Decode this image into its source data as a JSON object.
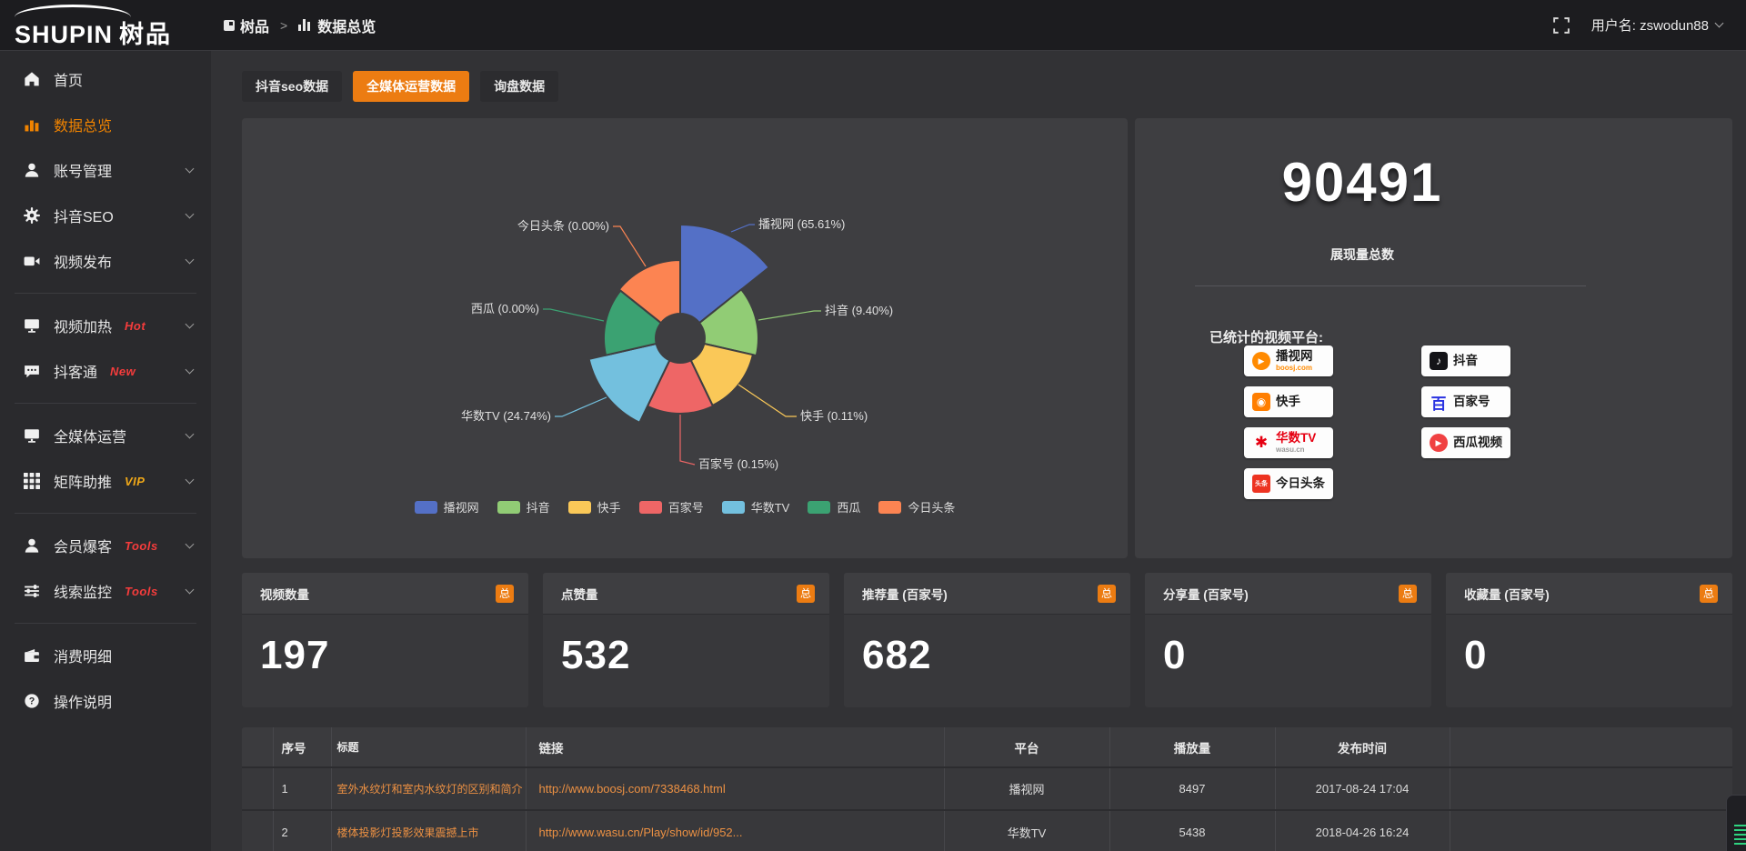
{
  "topbar": {
    "logo_en": "SHUPIN",
    "logo_cn": "树品",
    "breadcrumb_home": "树品",
    "breadcrumb_sep": ">",
    "breadcrumb_current": "数据总览",
    "username": "用户名: zswodun88"
  },
  "sidebar": {
    "items": [
      {
        "key": "home",
        "label": "首页",
        "icon": "home-icon"
      },
      {
        "key": "data-overview",
        "label": "数据总览",
        "icon": "bar-chart-icon",
        "active": true
      },
      {
        "key": "account-manage",
        "label": "账号管理",
        "icon": "user-icon",
        "chevron": true
      },
      {
        "key": "douyin-seo",
        "label": "抖音SEO",
        "icon": "gear-icon",
        "chevron": true
      },
      {
        "key": "video-publish",
        "label": "视频发布",
        "icon": "video-camera-icon",
        "chevron": true
      },
      {
        "divider": true
      },
      {
        "key": "video-heat",
        "label": "视频加热",
        "icon": "screen-icon",
        "badge": "Hot",
        "badge_color": "#F53C3C",
        "chevron": true
      },
      {
        "key": "douketong",
        "label": "抖客通",
        "icon": "chat-icon",
        "badge": "New",
        "badge_color": "#F53C3C",
        "chevron": true
      },
      {
        "divider": true
      },
      {
        "key": "media-operation",
        "label": "全媒体运营",
        "icon": "monitor-icon",
        "chevron": true
      },
      {
        "key": "matrix-boost",
        "label": "矩阵助推",
        "icon": "grid-icon",
        "badge": "VIP",
        "badge_color": "#F0A818",
        "chevron": true
      },
      {
        "divider": true
      },
      {
        "key": "member-baoke",
        "label": "会员爆客",
        "icon": "member-icon",
        "badge": "Tools",
        "badge_color": "#F53C3C",
        "chevron": true
      },
      {
        "key": "lead-monitor",
        "label": "线索监控",
        "icon": "sliders-icon",
        "badge": "Tools",
        "badge_color": "#F53C3C",
        "chevron": true
      },
      {
        "divider": true
      },
      {
        "key": "consume-detail",
        "label": "消费明细",
        "icon": "wallet-icon"
      },
      {
        "key": "operation-guide",
        "label": "操作说明",
        "icon": "help-icon"
      }
    ]
  },
  "tabs": {
    "items": [
      "抖音seo数据",
      "全媒体运营数据",
      "询盘数据"
    ],
    "active_index": 1
  },
  "chart_data": {
    "type": "pie",
    "subtype": "nightingale-rose",
    "legend_position": "bottom",
    "label_format": "name (percent%)",
    "series": [
      {
        "name": "播视网",
        "percent": "65.61",
        "color": "#5470c6"
      },
      {
        "name": "抖音",
        "percent": "9.40",
        "color": "#91cc75"
      },
      {
        "name": "快手",
        "percent": "0.11",
        "color": "#fac858"
      },
      {
        "name": "百家号",
        "percent": "0.15",
        "color": "#ee6666"
      },
      {
        "name": "华数TV",
        "percent": "24.74",
        "color": "#73c0de"
      },
      {
        "name": "西瓜",
        "percent": "0.00",
        "color": "#3ba272"
      },
      {
        "name": "今日头条",
        "percent": "0.00",
        "color": "#fc8452"
      }
    ]
  },
  "summary": {
    "total": "90491",
    "total_label": "展现量总数",
    "platforms_label": "已统计的视频平台:",
    "platforms": [
      {
        "name": "播视网",
        "sub": "boosj.com",
        "sub_color": "#FF8A00",
        "logo": "boosj-logo",
        "logo_glyph": "▶",
        "logo_color": "#FF8A00",
        "logo_shape": "circle",
        "col": 0
      },
      {
        "name": "抖音",
        "logo": "douyin-logo",
        "logo_glyph": "♪",
        "logo_color": "#141418",
        "logo_shape": "square",
        "col": 1
      },
      {
        "name": "快手",
        "logo": "kuaishou-logo",
        "logo_glyph": "◉",
        "logo_color": "#FF7E00",
        "logo_shape": "square",
        "col": 0
      },
      {
        "name": "百家号",
        "logo": "baijiahao-logo",
        "logo_glyph": "百",
        "logo_color": "#2932E1",
        "logo_shape": "text",
        "col": 1
      },
      {
        "name": "华数TV",
        "name_color": "#E60012",
        "sub": "wasu.cn",
        "sub_color": "#999999",
        "logo": "wasu-logo",
        "logo_glyph": "✱",
        "logo_color": "#E60012",
        "logo_shape": "text",
        "col": 0
      },
      {
        "name": "西瓜视频",
        "logo": "xigua-logo",
        "logo_glyph": "▶",
        "logo_color": "#F04142",
        "logo_shape": "circle",
        "col": 1
      },
      {
        "name": "今日头条",
        "logo": "toutiao-logo",
        "logo_glyph": "头条",
        "logo_color": "#ED3321",
        "logo_shape": "square-sm",
        "col": 0
      }
    ]
  },
  "stat_cards": [
    {
      "label": "视频数量",
      "badge": "总",
      "value": "197"
    },
    {
      "label": "点赞量",
      "badge": "总",
      "value": "532"
    },
    {
      "label": "推荐量 (百家号)",
      "badge": "总",
      "value": "682"
    },
    {
      "label": "分享量 (百家号)",
      "badge": "总",
      "value": "0"
    },
    {
      "label": "收藏量 (百家号)",
      "badge": "总",
      "value": "0"
    }
  ],
  "table": {
    "headers": [
      "序号",
      "标题",
      "链接",
      "平台",
      "播放量",
      "发布时间"
    ],
    "rows": [
      {
        "no": "1",
        "title": "室外水纹灯和室内水纹灯的区别和简介",
        "link": "http://www.boosj.com/7338468.html",
        "platform": "播视网",
        "views": "8497",
        "time": "2017-08-24 17:04"
      },
      {
        "no": "2",
        "title": "楼体投影灯投影效果震撼上市",
        "link": "http://www.wasu.cn/Play/show/id/952...",
        "platform": "华数TV",
        "views": "5438",
        "time": "2018-04-26 16:24"
      }
    ]
  },
  "colors": {
    "accent": "#EC7C12",
    "link": "#ED9143",
    "sidebar_active": "#F08300"
  }
}
